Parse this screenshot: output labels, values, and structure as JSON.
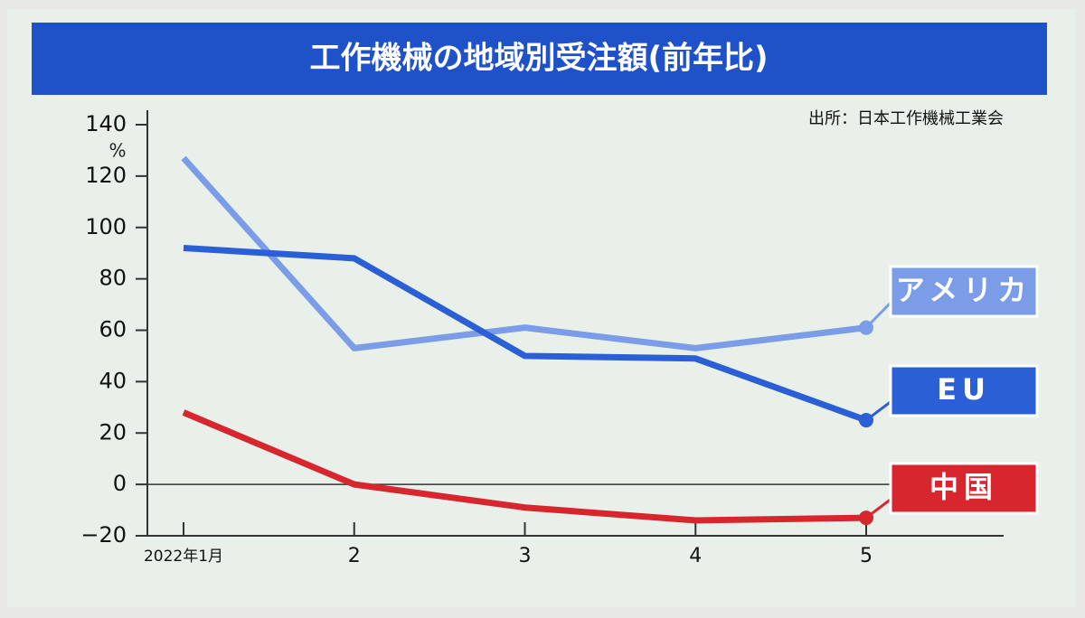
{
  "chart_data": {
    "type": "line",
    "title": "工作機械の地域別受注額(前年比)",
    "source": "出所：日本工作機械工業会",
    "y_unit": "%",
    "categories": [
      "2022年1月",
      "2",
      "3",
      "4",
      "5"
    ],
    "series": [
      {
        "name": "アメリカ",
        "color": "#7b9de8",
        "values": [
          127,
          53,
          61,
          53,
          61
        ]
      },
      {
        "name": "EU",
        "color": "#2a5fd6",
        "values": [
          92,
          88,
          50,
          49,
          25
        ]
      },
      {
        "name": "中国",
        "color": "#d8262f",
        "values": [
          28,
          0,
          -9,
          -14,
          -13
        ]
      }
    ],
    "ylim": [
      -20,
      140
    ],
    "yticks": [
      {
        "value": -20,
        "label": "−20"
      },
      0,
      20,
      40,
      60,
      80,
      100,
      120,
      140
    ]
  }
}
